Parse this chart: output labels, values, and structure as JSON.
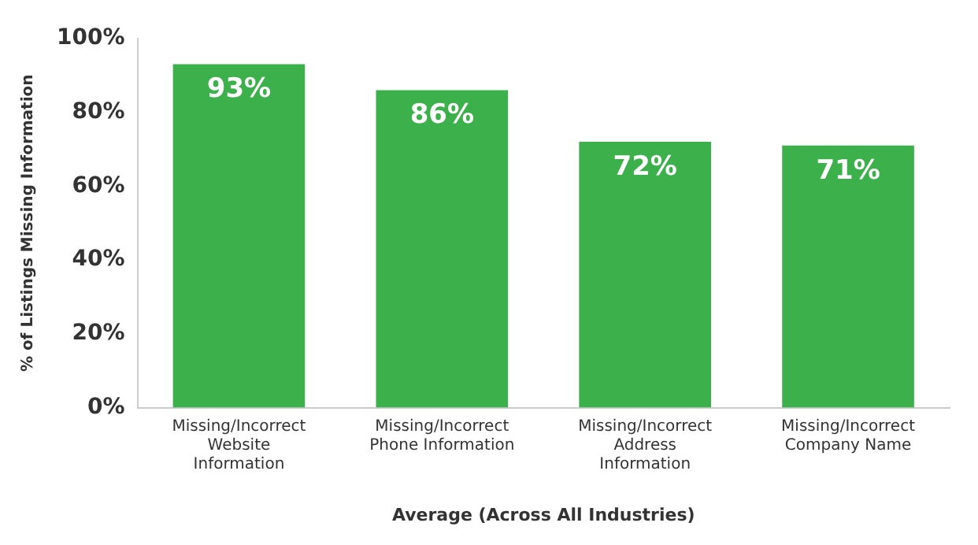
{
  "chart_data": {
    "type": "bar",
    "xlabel": "Average (Across All Industries)",
    "ylabel": "% of Listings Missing Information",
    "categories": [
      "Missing/Incorrect Website Information",
      "Missing/Incorrect Phone Information",
      "Missing/Incorrect Address Information",
      "Missing/Incorrect Company Name"
    ],
    "values": [
      93,
      86,
      72,
      71
    ],
    "value_labels": [
      "93%",
      "86%",
      "72%",
      "71%"
    ],
    "color": "#3cb04a",
    "ylim": [
      0,
      100
    ],
    "yticks": [
      {
        "value": 0,
        "label": "0%"
      },
      {
        "value": 20,
        "label": "20%"
      },
      {
        "value": 40,
        "label": "40%"
      },
      {
        "value": 60,
        "label": "60%"
      },
      {
        "value": 80,
        "label": "80%"
      },
      {
        "value": 100,
        "label": "100%"
      }
    ],
    "grid": false,
    "legend": false
  }
}
